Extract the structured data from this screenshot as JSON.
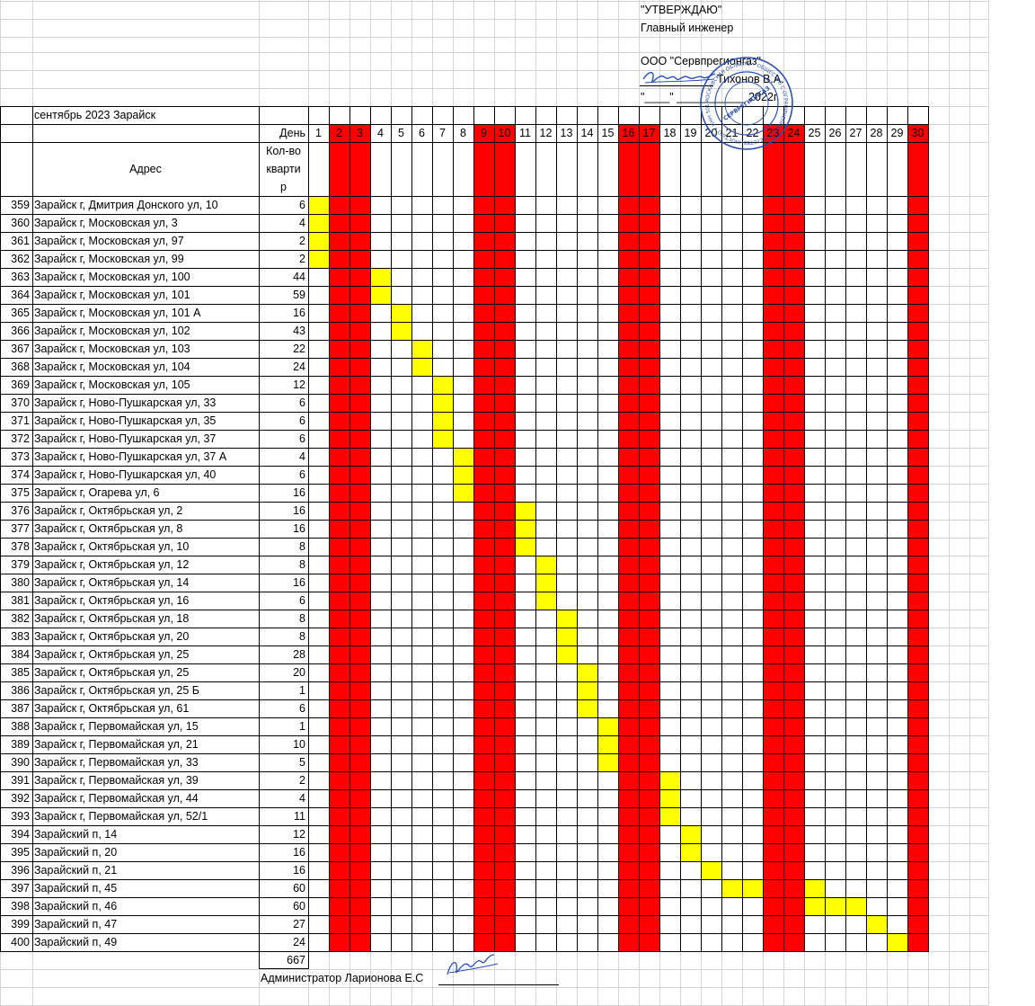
{
  "approval": {
    "approve": "\"УТВЕРЖДАЮ\"",
    "position": "Главный инженер",
    "company": "ООО \"Сервпрегионгаз\"",
    "person": "Тихонов В.А.",
    "date_line": "\"____\"  ___________ 2022г."
  },
  "table": {
    "month_label": "сентябрь 2023 Зарайск",
    "address_header": "Адрес",
    "day_header": "День",
    "count_header": [
      "Кол-во",
      "кварти",
      "р"
    ],
    "days": [
      "1",
      "2",
      "3",
      "4",
      "5",
      "6",
      "7",
      "8",
      "9",
      "10",
      "11",
      "12",
      "13",
      "14",
      "15",
      "16",
      "17",
      "18",
      "19",
      "20",
      "21",
      "22",
      "23",
      "24",
      "25",
      "26",
      "27",
      "28",
      "29",
      "30"
    ],
    "weekend_days": [
      2,
      3,
      9,
      10,
      16,
      17,
      23,
      24,
      30
    ],
    "rows": [
      {
        "n": "359",
        "addr": "Зарайск г, Дмитрия Донского ул, 10",
        "qty": "6",
        "days": [
          1
        ]
      },
      {
        "n": "360",
        "addr": "Зарайск г, Московская ул, 3",
        "qty": "4",
        "days": [
          1
        ]
      },
      {
        "n": "361",
        "addr": "Зарайск г, Московская ул, 97",
        "qty": "2",
        "days": [
          1
        ]
      },
      {
        "n": "362",
        "addr": "Зарайск г, Московская ул, 99",
        "qty": "2",
        "days": [
          1
        ]
      },
      {
        "n": "363",
        "addr": "Зарайск г, Московская ул, 100",
        "qty": "44",
        "days": [
          4
        ]
      },
      {
        "n": "364",
        "addr": "Зарайск г, Московская ул, 101",
        "qty": "59",
        "days": [
          4
        ]
      },
      {
        "n": "365",
        "addr": "Зарайск г, Московская ул, 101 А",
        "qty": "16",
        "days": [
          5
        ]
      },
      {
        "n": "366",
        "addr": "Зарайск г, Московская ул, 102",
        "qty": "43",
        "days": [
          5
        ]
      },
      {
        "n": "367",
        "addr": "Зарайск г, Московская ул, 103",
        "qty": "22",
        "days": [
          6
        ]
      },
      {
        "n": "368",
        "addr": "Зарайск г, Московская ул, 104",
        "qty": "24",
        "days": [
          6
        ]
      },
      {
        "n": "369",
        "addr": "Зарайск г, Московская ул, 105",
        "qty": "12",
        "days": [
          7
        ]
      },
      {
        "n": "370",
        "addr": "Зарайск г, Ново-Пушкарская ул, 33",
        "qty": "6",
        "days": [
          7
        ]
      },
      {
        "n": "371",
        "addr": "Зарайск г, Ново-Пушкарская ул, 35",
        "qty": "6",
        "days": [
          7
        ]
      },
      {
        "n": "372",
        "addr": "Зарайск г, Ново-Пушкарская ул, 37",
        "qty": "6",
        "days": [
          7
        ]
      },
      {
        "n": "373",
        "addr": "Зарайск г, Ново-Пушкарская ул, 37 А",
        "qty": "4",
        "days": [
          8
        ]
      },
      {
        "n": "374",
        "addr": "Зарайск г, Ново-Пушкарская ул, 40",
        "qty": "6",
        "days": [
          8
        ]
      },
      {
        "n": "375",
        "addr": "Зарайск г, Огарева ул, 6",
        "qty": "16",
        "days": [
          8
        ]
      },
      {
        "n": "376",
        "addr": "Зарайск г, Октябрьская ул, 2",
        "qty": "16",
        "days": [
          11
        ]
      },
      {
        "n": "377",
        "addr": "Зарайск г, Октябрьская ул, 8",
        "qty": "16",
        "days": [
          11
        ]
      },
      {
        "n": "378",
        "addr": "Зарайск г, Октябрьская ул, 10",
        "qty": "8",
        "days": [
          11
        ]
      },
      {
        "n": "379",
        "addr": "Зарайск г, Октябрьская ул, 12",
        "qty": "8",
        "days": [
          12
        ]
      },
      {
        "n": "380",
        "addr": "Зарайск г, Октябрьская ул, 14",
        "qty": "16",
        "days": [
          12
        ]
      },
      {
        "n": "381",
        "addr": "Зарайск г, Октябрьская ул, 16",
        "qty": "6",
        "days": [
          12
        ]
      },
      {
        "n": "382",
        "addr": "Зарайск г, Октябрьская ул, 18",
        "qty": "8",
        "days": [
          13
        ]
      },
      {
        "n": "383",
        "addr": "Зарайск г, Октябрьская ул, 20",
        "qty": "8",
        "days": [
          13
        ]
      },
      {
        "n": "384",
        "addr": "Зарайск г, Октябрьская ул, 25",
        "qty": "28",
        "days": [
          13
        ]
      },
      {
        "n": "385",
        "addr": "Зарайск г, Октябрьская ул, 25",
        "qty": "20",
        "days": [
          14
        ]
      },
      {
        "n": "386",
        "addr": "Зарайск г, Октябрьская ул, 25 Б",
        "qty": "1",
        "days": [
          14
        ]
      },
      {
        "n": "387",
        "addr": "Зарайск г, Октябрьская ул, 61",
        "qty": "6",
        "days": [
          14
        ]
      },
      {
        "n": "388",
        "addr": "Зарайск г, Первомайская ул, 15",
        "qty": "1",
        "days": [
          15
        ]
      },
      {
        "n": "389",
        "addr": "Зарайск г, Первомайская ул, 21",
        "qty": "10",
        "days": [
          15
        ]
      },
      {
        "n": "390",
        "addr": "Зарайск г, Первомайская ул, 33",
        "qty": "5",
        "days": [
          15
        ]
      },
      {
        "n": "391",
        "addr": "Зарайск г, Первомайская ул, 39",
        "qty": "2",
        "days": [
          18
        ]
      },
      {
        "n": "392",
        "addr": "Зарайск г, Первомайская ул, 44",
        "qty": "4",
        "days": [
          18
        ]
      },
      {
        "n": "393",
        "addr": "Зарайск г, Первомайская ул, 52/1",
        "qty": "11",
        "days": [
          18
        ]
      },
      {
        "n": "394",
        "addr": "Зарайский п, 14",
        "qty": "12",
        "days": [
          19
        ]
      },
      {
        "n": "395",
        "addr": "Зарайский п, 20",
        "qty": "16",
        "days": [
          19
        ]
      },
      {
        "n": "396",
        "addr": "Зарайский п, 21",
        "qty": "16",
        "days": [
          20
        ]
      },
      {
        "n": "397",
        "addr": "Зарайский п, 45",
        "qty": "60",
        "days": [
          21,
          22,
          25
        ]
      },
      {
        "n": "398",
        "addr": "Зарайский п, 46",
        "qty": "60",
        "days": [
          25,
          26,
          27
        ]
      },
      {
        "n": "399",
        "addr": "Зарайский п, 47",
        "qty": "27",
        "days": [
          28
        ]
      },
      {
        "n": "400",
        "addr": "Зарайский п, 49",
        "qty": "24",
        "days": [
          29
        ]
      }
    ],
    "total": "667"
  },
  "footer": {
    "administrator": "Администратор Ларионова Е.С"
  },
  "stamp": {
    "center_text": "СЕРВРЕГИОНГАЗ",
    "ring_text": "МОСКОВСКАЯ ОБЛАСТЬ • ОБЩЕСТВО С ОГРАНИЧЕННОЙ ОТВЕТСТВЕННОСТЬЮ • ИНН 5014011297 • ОГРН 1185081003497 •"
  },
  "colors": {
    "weekend": "#ff0000",
    "scheduled": "#ffff00",
    "grid": "#d4d4d4",
    "stamp": "#2a4fb5"
  }
}
